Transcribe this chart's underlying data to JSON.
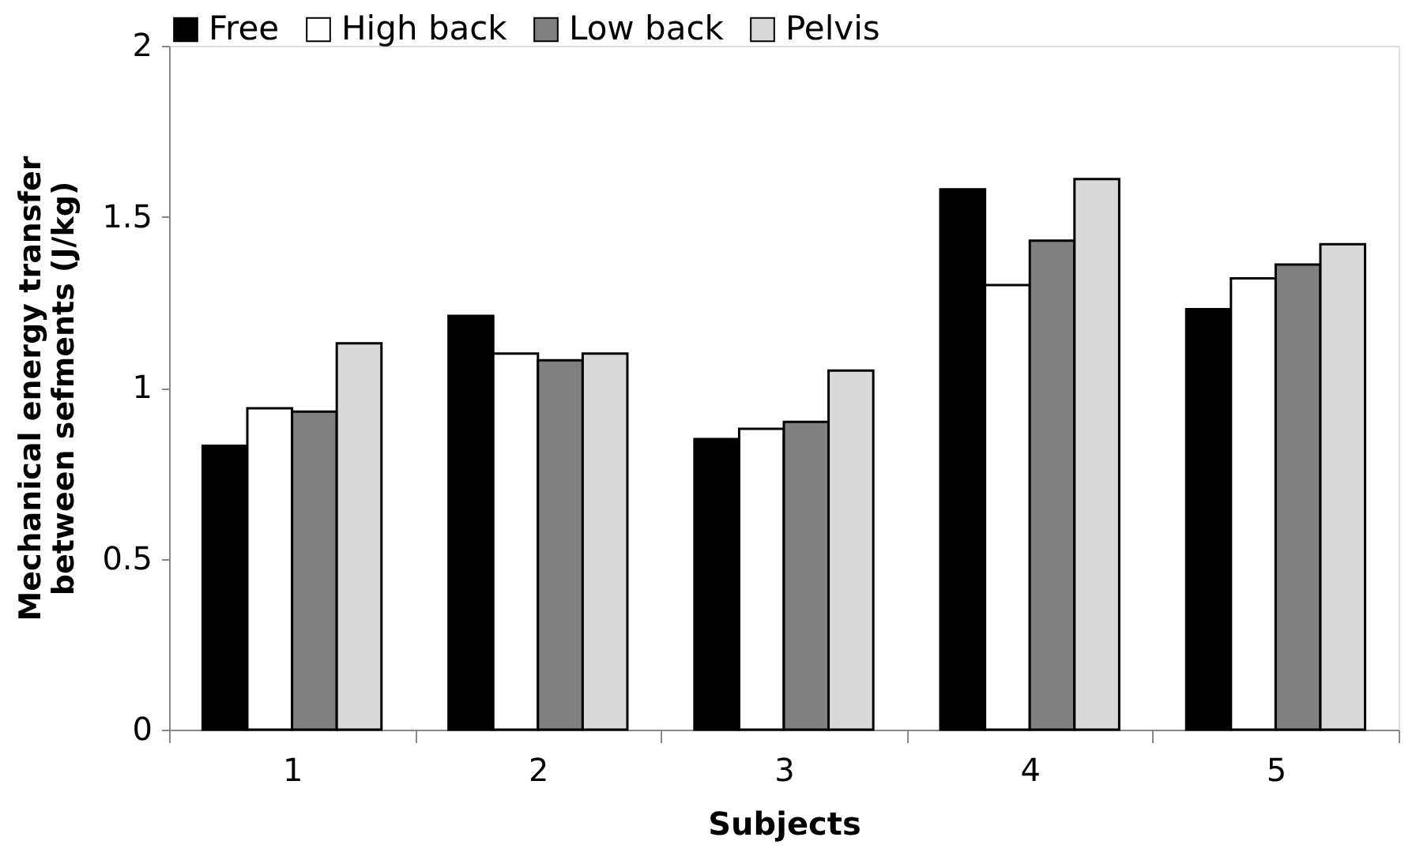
{
  "chart_data": {
    "type": "bar",
    "xlabel": "Subjects",
    "ylabel": "Mechanical energy transfer\nbetween sefments (J/kg)",
    "categories": [
      "1",
      "2",
      "3",
      "4",
      "5"
    ],
    "series": [
      {
        "name": "Free",
        "color": "#000000",
        "values": [
          0.83,
          1.21,
          0.85,
          1.58,
          1.23
        ]
      },
      {
        "name": "High back",
        "color": "#ffffff",
        "values": [
          0.94,
          1.1,
          0.88,
          1.3,
          1.32
        ]
      },
      {
        "name": "Low back",
        "color": "#808080",
        "values": [
          0.93,
          1.08,
          0.9,
          1.43,
          1.36
        ]
      },
      {
        "name": "Pelvis",
        "color": "#d9d9d9",
        "values": [
          1.13,
          1.1,
          1.05,
          1.61,
          1.42
        ]
      }
    ],
    "ylim": [
      0,
      2
    ],
    "yticks": [
      0,
      0.5,
      1,
      1.5,
      2
    ],
    "grid": false,
    "legend": "top"
  }
}
